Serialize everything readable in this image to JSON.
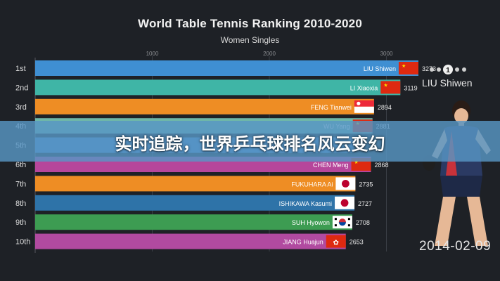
{
  "banner": {
    "text": "实时追踪，世界乒乓球排名风云变幻"
  },
  "player_panel": {
    "name": "LIU Shiwen",
    "date": "2014-02-09"
  },
  "chart_data": {
    "type": "bar",
    "orientation": "horizontal",
    "title": "World Table Tennis Ranking 2010-2020",
    "subtitle": "Women Singles",
    "x_ticks": [
      "1000",
      "2000",
      "3000"
    ],
    "xlim": [
      0,
      3300
    ],
    "grid": true,
    "ranks": [
      "1st",
      "2nd",
      "3rd",
      "4th",
      "5th",
      "6th",
      "7th",
      "8th",
      "9th",
      "10th"
    ],
    "names": [
      "LIU Shiwen",
      "LI Xiaoxia",
      "FENG Tianwei",
      "WU Yang",
      "",
      "CHEN Meng",
      "FUKUHARA Ai",
      "ISHIKAWA Kasumi",
      "SUH Hyowon",
      "JIANG Huajun"
    ],
    "values": [
      3273,
      3119,
      2894,
      2881,
      null,
      2868,
      2735,
      2727,
      2708,
      2653
    ],
    "value_labels": [
      "3273",
      "3119",
      "2894",
      "2881",
      "",
      "2868",
      "2735",
      "2727",
      "2708",
      "2653"
    ],
    "flags": [
      "china",
      "china",
      "singapore",
      "china",
      "",
      "china",
      "japan",
      "japan",
      "korea",
      "hongkong"
    ],
    "colors": [
      "#3f8fd2",
      "#3fb5a6",
      "#ee8d24",
      "#6fb7a8",
      "#4c86c8",
      "#b6469b",
      "#ee8d24",
      "#2e73a8",
      "#3d9c52",
      "#b14aa0"
    ]
  }
}
